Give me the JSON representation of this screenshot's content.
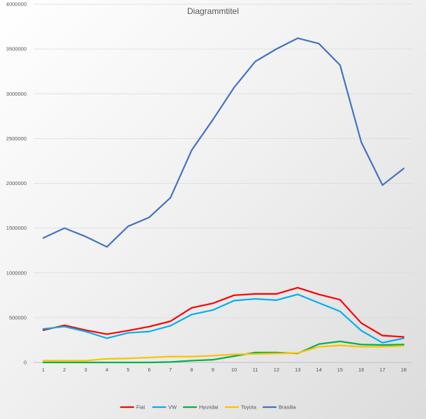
{
  "chart_data": {
    "type": "line",
    "title": "Diagrammtitel",
    "xlabel": "",
    "ylabel": "",
    "categories": [
      "1",
      "2",
      "3",
      "4",
      "5",
      "6",
      "7",
      "8",
      "9",
      "10",
      "11",
      "12",
      "13",
      "14",
      "15",
      "16",
      "17",
      "18"
    ],
    "ylim": [
      0,
      4000000
    ],
    "yticks": [
      0,
      500000,
      1000000,
      1500000,
      2000000,
      2500000,
      3000000,
      3500000,
      4000000
    ],
    "grid": true,
    "legend_position": "bottom",
    "series": [
      {
        "name": "Fiat",
        "color": "#ff0000",
        "values": [
          360000,
          415000,
          360000,
          315000,
          355000,
          400000,
          460000,
          610000,
          660000,
          750000,
          765000,
          765000,
          835000,
          760000,
          700000,
          440000,
          300000,
          285000
        ]
      },
      {
        "name": "VW",
        "color": "#00b0f0",
        "values": [
          375000,
          400000,
          345000,
          270000,
          330000,
          345000,
          410000,
          535000,
          585000,
          690000,
          710000,
          695000,
          760000,
          665000,
          570000,
          355000,
          220000,
          270000
        ]
      },
      {
        "name": "Hyundai",
        "color": "#00b050",
        "values": [
          0,
          0,
          0,
          0,
          0,
          0,
          5000,
          20000,
          30000,
          70000,
          110000,
          110000,
          100000,
          205000,
          235000,
          200000,
          195000,
          200000
        ]
      },
      {
        "name": "Toyota",
        "color": "#ffc000",
        "values": [
          20000,
          20000,
          20000,
          40000,
          45000,
          55000,
          65000,
          65000,
          75000,
          90000,
          95000,
          100000,
          105000,
          175000,
          190000,
          175000,
          175000,
          185000
        ]
      },
      {
        "name": "Brasilia",
        "color": "#4472c4",
        "values": [
          1390000,
          1500000,
          1405000,
          1290000,
          1520000,
          1620000,
          1840000,
          2370000,
          2710000,
          3070000,
          3360000,
          3500000,
          3620000,
          3560000,
          3320000,
          2460000,
          1980000,
          2165000
        ]
      }
    ]
  }
}
